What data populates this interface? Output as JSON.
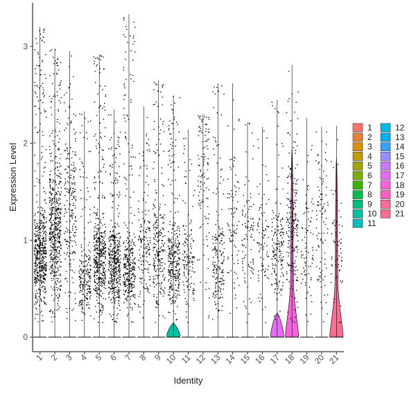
{
  "chart_data": {
    "type": "violin",
    "xlabel": "Identity",
    "ylabel": "Expression Level",
    "ylim": [
      -0.15,
      3.45
    ],
    "yticks": [
      0,
      1,
      2,
      3
    ],
    "categories": [
      "1",
      "2",
      "3",
      "4",
      "5",
      "6",
      "7",
      "8",
      "9",
      "10",
      "11",
      "12",
      "13",
      "14",
      "15",
      "16",
      "17",
      "18",
      "19",
      "20",
      "21"
    ],
    "colors": [
      "#F8766D",
      "#EA8331",
      "#D89000",
      "#C09B00",
      "#A3A500",
      "#7CAE00",
      "#39B600",
      "#00BB4E",
      "#00BF7D",
      "#00C1A3",
      "#00BFC4",
      "#00BAE0",
      "#00B0F6",
      "#35A2FF",
      "#9590FF",
      "#C77CFF",
      "#E76BF3",
      "#FA62DB",
      "#FF62BC",
      "#FF6A98",
      "#FF6C91"
    ],
    "max_values": [
      3.2,
      2.98,
      2.95,
      2.33,
      2.92,
      2.35,
      3.33,
      2.38,
      2.65,
      2.49,
      2.14,
      2.3,
      2.62,
      2.62,
      2.22,
      2.17,
      2.45,
      2.81,
      2.26,
      2.17,
      2.18
    ],
    "visible_violins": [
      {
        "category": "10",
        "peak_y": 0.15,
        "half_width_at_zero": 0.45
      },
      {
        "category": "17",
        "peak_y": 0.25,
        "half_width_at_zero": 0.45
      },
      {
        "category": "18",
        "peak_y": 1.95,
        "half_width_at_zero": 0.45
      },
      {
        "category": "21",
        "peak_y": 1.85,
        "half_width_at_zero": 0.45
      }
    ],
    "legend": {
      "placement": "right",
      "entries": [
        "1",
        "2",
        "3",
        "4",
        "5",
        "6",
        "7",
        "8",
        "9",
        "10",
        "11",
        "12",
        "13",
        "14",
        "15",
        "16",
        "17",
        "18",
        "19",
        "20",
        "21"
      ]
    },
    "grid": false
  }
}
